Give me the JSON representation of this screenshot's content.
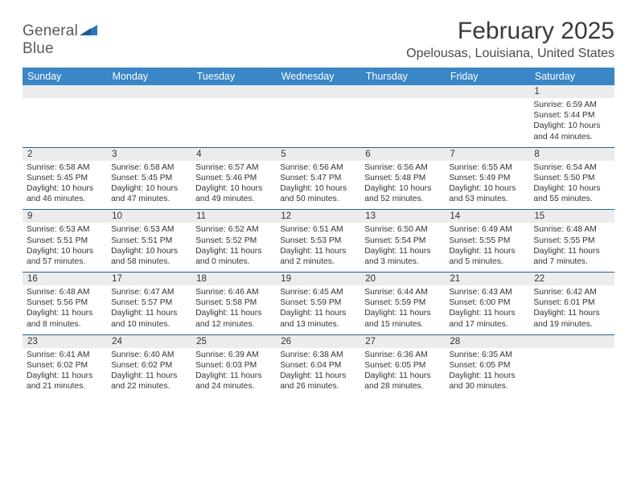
{
  "brand": {
    "name_part1": "General",
    "name_part2": "Blue",
    "mark_color": "#2f76b8",
    "text_color_gray": "#5a5a5a"
  },
  "title": {
    "month": "February 2025",
    "location": "Opelousas, Louisiana, United States"
  },
  "colors": {
    "header_bg": "#3a86c6",
    "header_text": "#ffffff",
    "row_divider": "#2f5f8a",
    "daynum_bg": "#ececec",
    "body_text": "#333333",
    "page_bg": "#ffffff"
  },
  "fonts": {
    "title_size_pt": 22,
    "location_size_pt": 12,
    "dow_size_pt": 9,
    "daynum_size_pt": 8.5,
    "cell_size_pt": 7.7
  },
  "days_of_week": [
    "Sunday",
    "Monday",
    "Tuesday",
    "Wednesday",
    "Thursday",
    "Friday",
    "Saturday"
  ],
  "weeks": [
    [
      {
        "n": "",
        "sr": "",
        "ss": "",
        "dl": ""
      },
      {
        "n": "",
        "sr": "",
        "ss": "",
        "dl": ""
      },
      {
        "n": "",
        "sr": "",
        "ss": "",
        "dl": ""
      },
      {
        "n": "",
        "sr": "",
        "ss": "",
        "dl": ""
      },
      {
        "n": "",
        "sr": "",
        "ss": "",
        "dl": ""
      },
      {
        "n": "",
        "sr": "",
        "ss": "",
        "dl": ""
      },
      {
        "n": "1",
        "sr": "Sunrise: 6:59 AM",
        "ss": "Sunset: 5:44 PM",
        "dl": "Daylight: 10 hours and 44 minutes."
      }
    ],
    [
      {
        "n": "2",
        "sr": "Sunrise: 6:58 AM",
        "ss": "Sunset: 5:45 PM",
        "dl": "Daylight: 10 hours and 46 minutes."
      },
      {
        "n": "3",
        "sr": "Sunrise: 6:58 AM",
        "ss": "Sunset: 5:45 PM",
        "dl": "Daylight: 10 hours and 47 minutes."
      },
      {
        "n": "4",
        "sr": "Sunrise: 6:57 AM",
        "ss": "Sunset: 5:46 PM",
        "dl": "Daylight: 10 hours and 49 minutes."
      },
      {
        "n": "5",
        "sr": "Sunrise: 6:56 AM",
        "ss": "Sunset: 5:47 PM",
        "dl": "Daylight: 10 hours and 50 minutes."
      },
      {
        "n": "6",
        "sr": "Sunrise: 6:56 AM",
        "ss": "Sunset: 5:48 PM",
        "dl": "Daylight: 10 hours and 52 minutes."
      },
      {
        "n": "7",
        "sr": "Sunrise: 6:55 AM",
        "ss": "Sunset: 5:49 PM",
        "dl": "Daylight: 10 hours and 53 minutes."
      },
      {
        "n": "8",
        "sr": "Sunrise: 6:54 AM",
        "ss": "Sunset: 5:50 PM",
        "dl": "Daylight: 10 hours and 55 minutes."
      }
    ],
    [
      {
        "n": "9",
        "sr": "Sunrise: 6:53 AM",
        "ss": "Sunset: 5:51 PM",
        "dl": "Daylight: 10 hours and 57 minutes."
      },
      {
        "n": "10",
        "sr": "Sunrise: 6:53 AM",
        "ss": "Sunset: 5:51 PM",
        "dl": "Daylight: 10 hours and 58 minutes."
      },
      {
        "n": "11",
        "sr": "Sunrise: 6:52 AM",
        "ss": "Sunset: 5:52 PM",
        "dl": "Daylight: 11 hours and 0 minutes."
      },
      {
        "n": "12",
        "sr": "Sunrise: 6:51 AM",
        "ss": "Sunset: 5:53 PM",
        "dl": "Daylight: 11 hours and 2 minutes."
      },
      {
        "n": "13",
        "sr": "Sunrise: 6:50 AM",
        "ss": "Sunset: 5:54 PM",
        "dl": "Daylight: 11 hours and 3 minutes."
      },
      {
        "n": "14",
        "sr": "Sunrise: 6:49 AM",
        "ss": "Sunset: 5:55 PM",
        "dl": "Daylight: 11 hours and 5 minutes."
      },
      {
        "n": "15",
        "sr": "Sunrise: 6:48 AM",
        "ss": "Sunset: 5:55 PM",
        "dl": "Daylight: 11 hours and 7 minutes."
      }
    ],
    [
      {
        "n": "16",
        "sr": "Sunrise: 6:48 AM",
        "ss": "Sunset: 5:56 PM",
        "dl": "Daylight: 11 hours and 8 minutes."
      },
      {
        "n": "17",
        "sr": "Sunrise: 6:47 AM",
        "ss": "Sunset: 5:57 PM",
        "dl": "Daylight: 11 hours and 10 minutes."
      },
      {
        "n": "18",
        "sr": "Sunrise: 6:46 AM",
        "ss": "Sunset: 5:58 PM",
        "dl": "Daylight: 11 hours and 12 minutes."
      },
      {
        "n": "19",
        "sr": "Sunrise: 6:45 AM",
        "ss": "Sunset: 5:59 PM",
        "dl": "Daylight: 11 hours and 13 minutes."
      },
      {
        "n": "20",
        "sr": "Sunrise: 6:44 AM",
        "ss": "Sunset: 5:59 PM",
        "dl": "Daylight: 11 hours and 15 minutes."
      },
      {
        "n": "21",
        "sr": "Sunrise: 6:43 AM",
        "ss": "Sunset: 6:00 PM",
        "dl": "Daylight: 11 hours and 17 minutes."
      },
      {
        "n": "22",
        "sr": "Sunrise: 6:42 AM",
        "ss": "Sunset: 6:01 PM",
        "dl": "Daylight: 11 hours and 19 minutes."
      }
    ],
    [
      {
        "n": "23",
        "sr": "Sunrise: 6:41 AM",
        "ss": "Sunset: 6:02 PM",
        "dl": "Daylight: 11 hours and 21 minutes."
      },
      {
        "n": "24",
        "sr": "Sunrise: 6:40 AM",
        "ss": "Sunset: 6:02 PM",
        "dl": "Daylight: 11 hours and 22 minutes."
      },
      {
        "n": "25",
        "sr": "Sunrise: 6:39 AM",
        "ss": "Sunset: 6:03 PM",
        "dl": "Daylight: 11 hours and 24 minutes."
      },
      {
        "n": "26",
        "sr": "Sunrise: 6:38 AM",
        "ss": "Sunset: 6:04 PM",
        "dl": "Daylight: 11 hours and 26 minutes."
      },
      {
        "n": "27",
        "sr": "Sunrise: 6:36 AM",
        "ss": "Sunset: 6:05 PM",
        "dl": "Daylight: 11 hours and 28 minutes."
      },
      {
        "n": "28",
        "sr": "Sunrise: 6:35 AM",
        "ss": "Sunset: 6:05 PM",
        "dl": "Daylight: 11 hours and 30 minutes."
      },
      {
        "n": "",
        "sr": "",
        "ss": "",
        "dl": ""
      }
    ]
  ]
}
